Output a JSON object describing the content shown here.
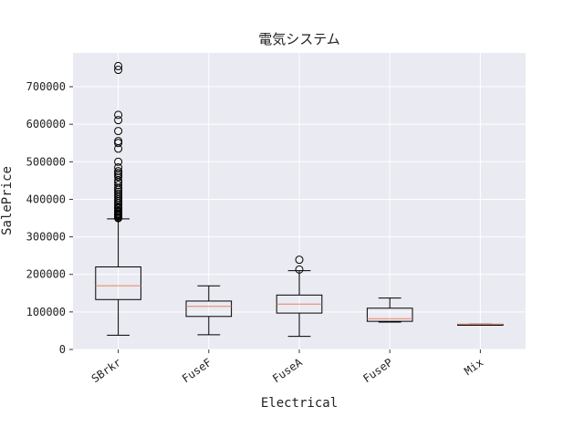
{
  "chart_data": {
    "type": "box",
    "title": "電気システム",
    "xlabel": "Electrical",
    "ylabel": "SalePrice",
    "ylim": [
      0,
      790000
    ],
    "yticks": [
      0,
      100000,
      200000,
      300000,
      400000,
      500000,
      600000,
      700000
    ],
    "grid": true,
    "categories": [
      "SBrkr",
      "FuseF",
      "FuseA",
      "FuseP",
      "Mix"
    ],
    "boxes": [
      {
        "category": "SBrkr",
        "whisker_low": 37900,
        "q1": 133000,
        "median": 170000,
        "q3": 220000,
        "whisker_high": 348000,
        "outliers": [
          350000,
          352000,
          355000,
          358000,
          360000,
          362000,
          365000,
          368000,
          370000,
          375000,
          378000,
          380000,
          385000,
          390000,
          395000,
          400000,
          405000,
          410000,
          415000,
          420000,
          425000,
          430000,
          438000,
          445000,
          450000,
          460000,
          465000,
          470000,
          475000,
          485000,
          500000,
          535000,
          550000,
          555000,
          582000,
          611000,
          625000,
          745000,
          755000
        ]
      },
      {
        "category": "FuseF",
        "whisker_low": 39300,
        "q1": 88000,
        "median": 115000,
        "q3": 129000,
        "whisker_high": 169500,
        "outliers": []
      },
      {
        "category": "FuseA",
        "whisker_low": 34900,
        "q1": 97000,
        "median": 121000,
        "q3": 145000,
        "whisker_high": 210000,
        "outliers": [
          213000,
          239000
        ]
      },
      {
        "category": "FuseP",
        "whisker_low": 73000,
        "q1": 75000,
        "median": 82000,
        "q3": 110000,
        "whisker_high": 137000,
        "outliers": []
      },
      {
        "category": "Mix",
        "whisker_low": 67000,
        "q1": 67000,
        "median": 67000,
        "q3": 67000,
        "whisker_high": 67000,
        "outliers": []
      }
    ],
    "colors": {
      "plot_background": "#eaeaf2",
      "grid": "#ffffff",
      "box": "#000000",
      "median": "#e8835a"
    }
  }
}
